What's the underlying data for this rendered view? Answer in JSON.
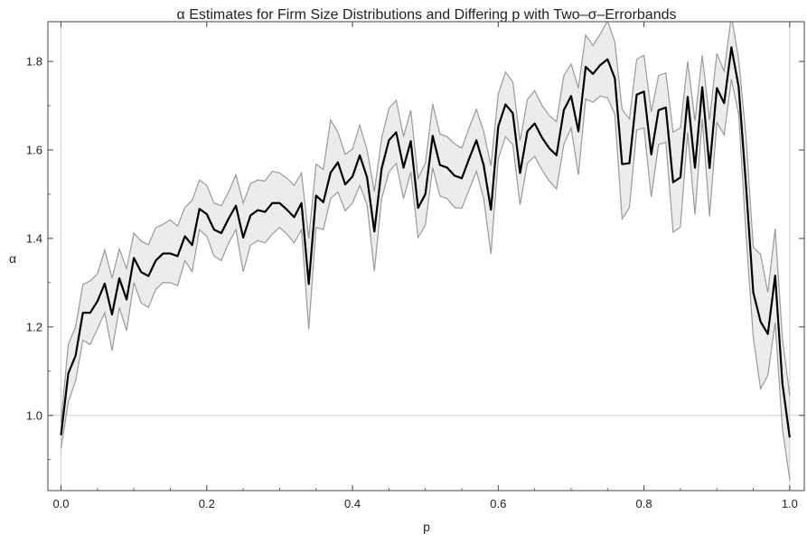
{
  "chart_data": {
    "type": "line",
    "title": "α Estimates for Firm Size Distributions and Differing p with Two–σ–Errorbands",
    "xlabel": "p",
    "ylabel": "α",
    "xlim": [
      -0.018,
      1.02
    ],
    "ylim": [
      0.83,
      1.89
    ],
    "xticks": [
      0.0,
      0.2,
      0.4,
      0.6,
      0.8,
      1.0
    ],
    "xtick_labels": [
      "0.0",
      "0.2",
      "0.4",
      "0.6",
      "0.8",
      "1.0"
    ],
    "yticks": [
      1.0,
      1.2,
      1.4,
      1.6,
      1.8
    ],
    "ytick_labels": [
      "1.0",
      "1.2",
      "1.4",
      "1.6",
      "1.8"
    ],
    "reference_line_y": 1.0,
    "reference_lines_x": [
      0.0,
      1.0
    ],
    "grid": false,
    "legend": "none",
    "colors": {
      "estimate": "#000000",
      "band_fill": "#ececec",
      "band_edge": "#9a9a9a",
      "reference": "#cccccc",
      "frame": "#444444"
    },
    "x": [
      0.0,
      0.01,
      0.02,
      0.03,
      0.04,
      0.05,
      0.06,
      0.07,
      0.08,
      0.09,
      0.1,
      0.11,
      0.12,
      0.13,
      0.14,
      0.15,
      0.16,
      0.17,
      0.18,
      0.19,
      0.2,
      0.21,
      0.22,
      0.23,
      0.24,
      0.25,
      0.26,
      0.27,
      0.28,
      0.29,
      0.3,
      0.31,
      0.32,
      0.33,
      0.34,
      0.35,
      0.36,
      0.37,
      0.38,
      0.39,
      0.4,
      0.41,
      0.42,
      0.43,
      0.44,
      0.45,
      0.46,
      0.47,
      0.48,
      0.49,
      0.5,
      0.51,
      0.52,
      0.53,
      0.54,
      0.55,
      0.56,
      0.57,
      0.58,
      0.59,
      0.6,
      0.61,
      0.62,
      0.63,
      0.64,
      0.65,
      0.66,
      0.67,
      0.68,
      0.69,
      0.7,
      0.71,
      0.72,
      0.73,
      0.74,
      0.75,
      0.76,
      0.77,
      0.78,
      0.79,
      0.8,
      0.81,
      0.82,
      0.83,
      0.84,
      0.85,
      0.86,
      0.87,
      0.88,
      0.89,
      0.9,
      0.91,
      0.92,
      0.93,
      0.94,
      0.95,
      0.96,
      0.97,
      0.98,
      0.99,
      1.0
    ],
    "series": [
      {
        "values": [
          0.955,
          1.095,
          1.135,
          1.232,
          1.232,
          1.258,
          1.298,
          1.228,
          1.31,
          1.262,
          1.356,
          1.324,
          1.315,
          1.35,
          1.366,
          1.366,
          1.36,
          1.405,
          1.385,
          1.467,
          1.455,
          1.42,
          1.412,
          1.445,
          1.474,
          1.402,
          1.452,
          1.464,
          1.46,
          1.48,
          1.48,
          1.465,
          1.448,
          1.48,
          1.297,
          1.497,
          1.482,
          1.549,
          1.572,
          1.522,
          1.54,
          1.588,
          1.538,
          1.416,
          1.558,
          1.622,
          1.64,
          1.56,
          1.62,
          1.469,
          1.5,
          1.632,
          1.566,
          1.56,
          1.542,
          1.536,
          1.58,
          1.622,
          1.566,
          1.465,
          1.653,
          1.703,
          1.683,
          1.548,
          1.642,
          1.66,
          1.628,
          1.604,
          1.588,
          1.69,
          1.722,
          1.642,
          1.788,
          1.772,
          1.792,
          1.805,
          1.762,
          1.568,
          1.57,
          1.725,
          1.732,
          1.59,
          1.69,
          1.696,
          1.527,
          1.538,
          1.72,
          1.56,
          1.742,
          1.559,
          1.74,
          1.706,
          1.832,
          1.742,
          1.52,
          1.278,
          1.212,
          1.184,
          1.316,
          1.072,
          0.95
        ],
        "lower": [
          0.925,
          1.03,
          1.078,
          1.17,
          1.16,
          1.196,
          1.232,
          1.146,
          1.244,
          1.192,
          1.3,
          1.254,
          1.244,
          1.285,
          1.3,
          1.3,
          1.293,
          1.35,
          1.325,
          1.42,
          1.405,
          1.36,
          1.35,
          1.39,
          1.42,
          1.325,
          1.385,
          1.395,
          1.39,
          1.41,
          1.425,
          1.41,
          1.39,
          1.42,
          1.195,
          1.425,
          1.42,
          1.49,
          1.505,
          1.462,
          1.48,
          1.52,
          1.476,
          1.326,
          1.49,
          1.55,
          1.57,
          1.49,
          1.55,
          1.402,
          1.43,
          1.56,
          1.496,
          1.49,
          1.47,
          1.468,
          1.51,
          1.552,
          1.49,
          1.365,
          1.58,
          1.63,
          1.612,
          1.476,
          1.57,
          1.586,
          1.555,
          1.53,
          1.512,
          1.612,
          1.65,
          1.544,
          1.715,
          1.708,
          1.722,
          1.718,
          1.68,
          1.444,
          1.47,
          1.645,
          1.65,
          1.494,
          1.612,
          1.618,
          1.414,
          1.426,
          1.64,
          1.454,
          1.67,
          1.45,
          1.662,
          1.634,
          1.76,
          1.68,
          1.41,
          1.176,
          1.06,
          1.09,
          1.21,
          0.97,
          0.855
        ],
        "upper": [
          0.985,
          1.16,
          1.2,
          1.296,
          1.304,
          1.32,
          1.374,
          1.31,
          1.376,
          1.332,
          1.412,
          1.394,
          1.386,
          1.424,
          1.432,
          1.442,
          1.428,
          1.47,
          1.486,
          1.532,
          1.52,
          1.48,
          1.474,
          1.505,
          1.544,
          1.48,
          1.524,
          1.532,
          1.53,
          1.552,
          1.548,
          1.536,
          1.52,
          1.548,
          1.4,
          1.568,
          1.556,
          1.668,
          1.64,
          1.59,
          1.602,
          1.656,
          1.6,
          1.506,
          1.626,
          1.694,
          1.712,
          1.63,
          1.69,
          1.536,
          1.57,
          1.704,
          1.636,
          1.63,
          1.614,
          1.604,
          1.65,
          1.692,
          1.642,
          1.564,
          1.726,
          1.776,
          1.754,
          1.62,
          1.714,
          1.734,
          1.701,
          1.678,
          1.664,
          1.768,
          1.794,
          1.74,
          1.86,
          1.836,
          1.862,
          1.892,
          1.844,
          1.692,
          1.67,
          1.805,
          1.814,
          1.686,
          1.768,
          1.774,
          1.64,
          1.65,
          1.8,
          1.666,
          1.814,
          1.668,
          1.818,
          1.778,
          1.904,
          1.804,
          1.63,
          1.38,
          1.364,
          1.278,
          1.422,
          1.174,
          1.045
        ]
      }
    ]
  }
}
